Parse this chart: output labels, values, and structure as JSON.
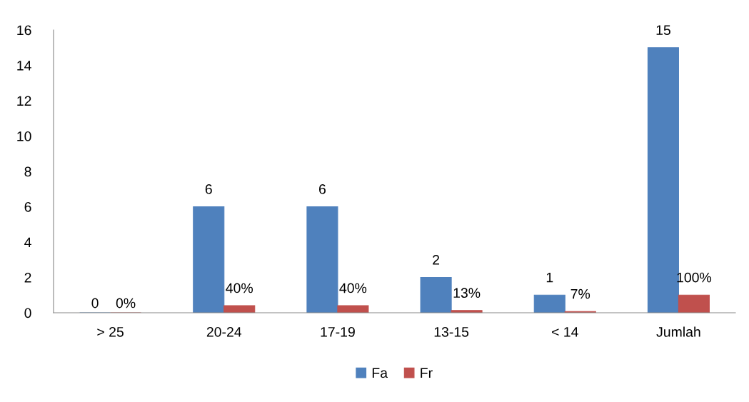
{
  "chart_data": {
    "type": "bar",
    "categories": [
      "> 25",
      "20-24",
      "17-19",
      "13-15",
      "< 14",
      "Jumlah"
    ],
    "series": [
      {
        "name": "Fa",
        "color": "#4f81bd",
        "values": [
          0,
          6,
          6,
          2,
          1,
          15
        ],
        "value_labels": [
          "0",
          "6",
          "6",
          "2",
          "1",
          "15"
        ]
      },
      {
        "name": "Fr",
        "color": "#c0504d",
        "values": [
          0,
          0.4,
          0.4,
          0.13,
          0.07,
          1
        ],
        "value_labels": [
          "0%",
          "40%",
          "40%",
          "13%",
          "7%",
          "100%"
        ]
      }
    ],
    "ylim": [
      0,
      16
    ],
    "yticks": [
      0,
      2,
      4,
      6,
      8,
      10,
      12,
      14,
      16
    ],
    "grid": false,
    "legend": "bottom"
  }
}
